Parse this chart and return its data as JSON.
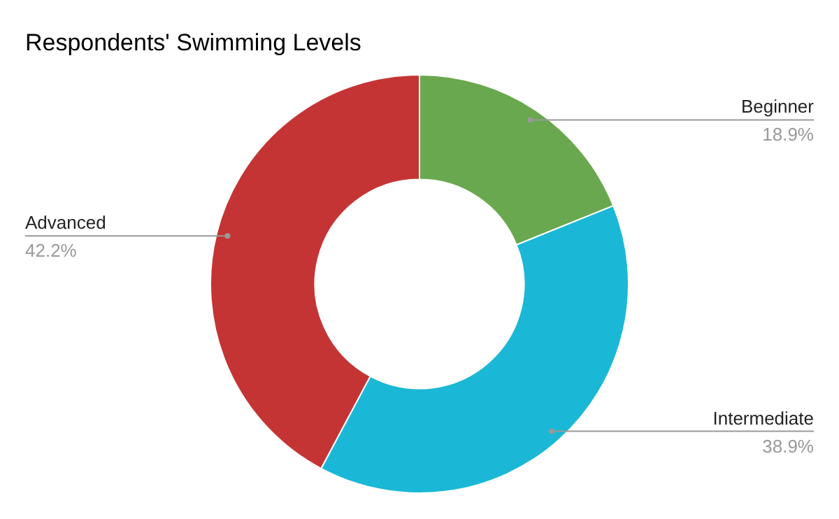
{
  "chart_data": {
    "type": "donut",
    "title": "Respondents' Swimming Levels",
    "categories": [
      "Beginner",
      "Intermediate",
      "Advanced"
    ],
    "values": [
      18.9,
      38.9,
      42.2
    ],
    "colors": [
      "#6aa84f",
      "#1ab8d6",
      "#c53434"
    ],
    "value_labels": [
      "18.9%",
      "38.9%",
      "42.2%"
    ],
    "legend": false
  }
}
